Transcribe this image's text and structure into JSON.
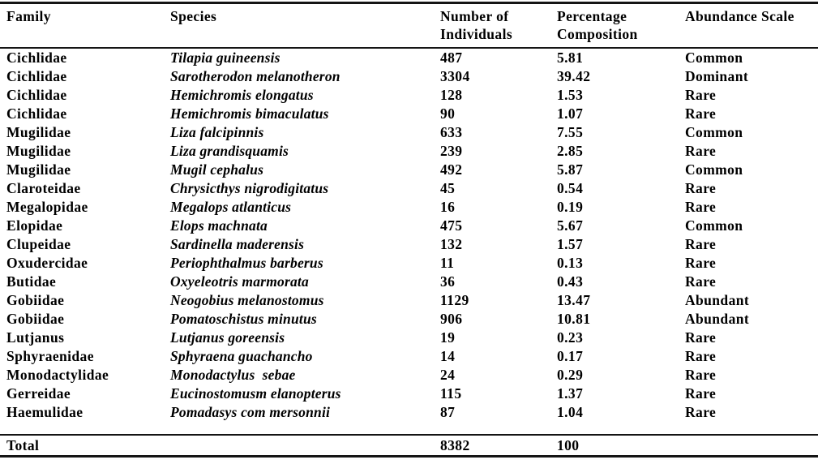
{
  "colors": {
    "background": "#ffffff",
    "text": "#000000",
    "rule_lines": "#141414"
  },
  "table": {
    "columns": [
      "Family",
      "Species",
      "Number of Individuals",
      "Percentage Composition",
      "Abundance Scale"
    ],
    "rows": [
      {
        "family": "Cichlidae",
        "species": "Tilapia guineensis",
        "individuals": "487",
        "percentage": "5.81",
        "abundance": "Common"
      },
      {
        "family": "Cichlidae",
        "species": "Sarotherodon melanotheron",
        "individuals": "3304",
        "percentage": "39.42",
        "abundance": "Dominant"
      },
      {
        "family": "Cichlidae",
        "species": "Hemichromis elongatus",
        "individuals": "128",
        "percentage": "1.53",
        "abundance": "Rare"
      },
      {
        "family": "Cichlidae",
        "species": "Hemichromis bimaculatus",
        "individuals": "90",
        "percentage": "1.07",
        "abundance": "Rare"
      },
      {
        "family": "Mugilidae",
        "species": "Liza falcipinnis",
        "individuals": "633",
        "percentage": "7.55",
        "abundance": "Common"
      },
      {
        "family": "Mugilidae",
        "species": "Liza grandisquamis",
        "individuals": "239",
        "percentage": "2.85",
        "abundance": "Rare"
      },
      {
        "family": "Mugilidae",
        "species": "Mugil cephalus",
        "individuals": "492",
        "percentage": "5.87",
        "abundance": "Common"
      },
      {
        "family": "Claroteidae",
        "species": "Chrysicthys nigrodigitatus",
        "individuals": "45",
        "percentage": "0.54",
        "abundance": "Rare"
      },
      {
        "family": "Megalopidae",
        "species": "Megalops atlanticus",
        "individuals": "16",
        "percentage": "0.19",
        "abundance": "Rare"
      },
      {
        "family": "Elopidae",
        "species": "Elops machnata",
        "individuals": "475",
        "percentage": "5.67",
        "abundance": "Common"
      },
      {
        "family": "Clupeidae",
        "species": "Sardinella maderensis",
        "individuals": "132",
        "percentage": "1.57",
        "abundance": "Rare"
      },
      {
        "family": "Oxudercidae",
        "species": "Periophthalmus barberus",
        "individuals": "11",
        "percentage": "0.13",
        "abundance": "Rare"
      },
      {
        "family": "Butidae",
        "species": "Oxyeleotris marmorata",
        "individuals": "36",
        "percentage": "0.43",
        "abundance": "Rare"
      },
      {
        "family": "Gobiidae",
        "species": "Neogobius melanostomus",
        "individuals": "1129",
        "percentage": "13.47",
        "abundance": "Abundant"
      },
      {
        "family": "Gobiidae",
        "species": "Pomatoschistus minutus",
        "individuals": "906",
        "percentage": "10.81",
        "abundance": "Abundant"
      },
      {
        "family": "Lutjanus",
        "species": "Lutjanus goreensis",
        "individuals": "19",
        "percentage": "0.23",
        "abundance": "Rare"
      },
      {
        "family": "Sphyraenidae",
        "species": "Sphyraena guachancho",
        "individuals": "14",
        "percentage": "0.17",
        "abundance": "Rare"
      },
      {
        "family": "Monodactylidae",
        "species": "Monodactylus  sebae",
        "individuals": "24",
        "percentage": "0.29",
        "abundance": "Rare"
      },
      {
        "family": "Gerreidae",
        "species": "Eucinostomusm elanopterus",
        "individuals": "115",
        "percentage": "1.37",
        "abundance": "Rare"
      },
      {
        "family": "Haemulidae",
        "species": "Pomadasys com mersonnii",
        "individuals": "87",
        "percentage": "1.04",
        "abundance": "Rare"
      }
    ],
    "total": {
      "label": "Total",
      "individuals": "8382",
      "percentage": "100",
      "abundance": ""
    }
  },
  "chart_data": {
    "type": "table",
    "columns": [
      "Family",
      "Species",
      "Number of Individuals",
      "Percentage Composition",
      "Abundance Scale"
    ],
    "rows": [
      [
        "Cichlidae",
        "Tilapia guineensis",
        487,
        5.81,
        "Common"
      ],
      [
        "Cichlidae",
        "Sarotherodon melanotheron",
        3304,
        39.42,
        "Dominant"
      ],
      [
        "Cichlidae",
        "Hemichromis elongatus",
        128,
        1.53,
        "Rare"
      ],
      [
        "Cichlidae",
        "Hemichromis bimaculatus",
        90,
        1.07,
        "Rare"
      ],
      [
        "Mugilidae",
        "Liza falcipinnis",
        633,
        7.55,
        "Common"
      ],
      [
        "Mugilidae",
        "Liza grandisquamis",
        239,
        2.85,
        "Rare"
      ],
      [
        "Mugilidae",
        "Mugil cephalus",
        492,
        5.87,
        "Common"
      ],
      [
        "Claroteidae",
        "Chrysicthys nigrodigitatus",
        45,
        0.54,
        "Rare"
      ],
      [
        "Megalopidae",
        "Megalops atlanticus",
        16,
        0.19,
        "Rare"
      ],
      [
        "Elopidae",
        "Elops machnata",
        475,
        5.67,
        "Common"
      ],
      [
        "Clupeidae",
        "Sardinella maderensis",
        132,
        1.57,
        "Rare"
      ],
      [
        "Oxudercidae",
        "Periophthalmus barberus",
        11,
        0.13,
        "Rare"
      ],
      [
        "Butidae",
        "Oxyeleotris marmorata",
        36,
        0.43,
        "Rare"
      ],
      [
        "Gobiidae",
        "Neogobius melanostomus",
        1129,
        13.47,
        "Abundant"
      ],
      [
        "Gobiidae",
        "Pomatoschistus minutus",
        906,
        10.81,
        "Abundant"
      ],
      [
        "Lutjanus",
        "Lutjanus goreensis",
        19,
        0.23,
        "Rare"
      ],
      [
        "Sphyraenidae",
        "Sphyraena guachancho",
        14,
        0.17,
        "Rare"
      ],
      [
        "Monodactylidae",
        "Monodactylus  sebae",
        24,
        0.29,
        "Rare"
      ],
      [
        "Gerreidae",
        "Eucinostomusm elanopterus",
        115,
        1.37,
        "Rare"
      ],
      [
        "Haemulidae",
        "Pomadasys com mersonnii",
        87,
        1.04,
        "Rare"
      ]
    ],
    "totals_row": [
      "Total",
      "",
      8382,
      100,
      ""
    ]
  }
}
